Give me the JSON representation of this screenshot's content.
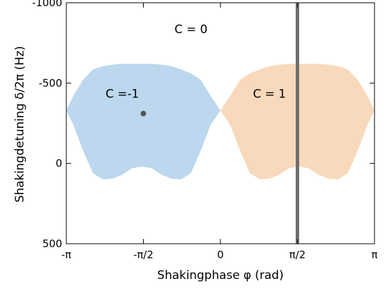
{
  "chart_data": {
    "type": "area",
    "xlabel": "Shakingphase φ (rad)",
    "ylabel": "Shakingdetuning δ/2π (Hz)",
    "xlim": [
      -3.14159,
      3.14159
    ],
    "ylim": [
      -1000,
      500
    ],
    "y_reversed": true,
    "grid": false,
    "x_ticks": [
      {
        "value": -3.14159,
        "label": "-π"
      },
      {
        "value": -1.5708,
        "label": "-π/2"
      },
      {
        "value": 0,
        "label": "0"
      },
      {
        "value": 1.5708,
        "label": "π/2"
      },
      {
        "value": 3.14159,
        "label": "π"
      }
    ],
    "y_ticks": [
      {
        "value": -1000,
        "label": "-1000"
      },
      {
        "value": -500,
        "label": "-500"
      },
      {
        "value": 0,
        "label": "0"
      },
      {
        "value": 500,
        "label": "500"
      }
    ],
    "regions": [
      {
        "label": "C =-1",
        "label_at": [
          -2.0,
          -410
        ],
        "color": "#bcd7ee",
        "x": [
          -3.14,
          -3.0,
          -2.8,
          -2.6,
          -2.4,
          -2.2,
          -2.0,
          -1.8,
          -1.6,
          -1.4,
          -1.2,
          -1.0,
          -0.8,
          -0.6,
          -0.4,
          -0.2,
          0.0
        ],
        "top": [
          -330,
          -420,
          -520,
          -585,
          -605,
          -615,
          -620,
          -620,
          -620,
          -620,
          -615,
          -605,
          -585,
          -560,
          -520,
          -420,
          -330
        ],
        "bottom": [
          -330,
          -240,
          -80,
          60,
          100,
          95,
          70,
          30,
          20,
          30,
          70,
          95,
          100,
          60,
          -80,
          -240,
          -330
        ]
      },
      {
        "label": "C = 1",
        "label_at": [
          1.0,
          -410
        ],
        "color": "#f9d9bb",
        "x": [
          0.0,
          0.2,
          0.4,
          0.6,
          0.8,
          1.0,
          1.2,
          1.4,
          1.6,
          1.8,
          2.0,
          2.2,
          2.4,
          2.6,
          2.8,
          3.0,
          3.14
        ],
        "top": [
          -330,
          -420,
          -520,
          -560,
          -585,
          -605,
          -615,
          -620,
          -620,
          -620,
          -620,
          -615,
          -605,
          -585,
          -520,
          -420,
          -330
        ],
        "bottom": [
          -330,
          -240,
          -80,
          60,
          100,
          95,
          70,
          30,
          20,
          30,
          70,
          95,
          100,
          60,
          -80,
          -240,
          -330
        ]
      }
    ],
    "annotations": [
      {
        "text": "C = 0",
        "x": -0.6,
        "y": -810
      }
    ],
    "points": [
      {
        "x": -1.5708,
        "y": -310,
        "color": "#555555"
      }
    ],
    "vertical_lines": [
      {
        "x": 1.5708,
        "color": "#6e6e6e"
      }
    ]
  }
}
